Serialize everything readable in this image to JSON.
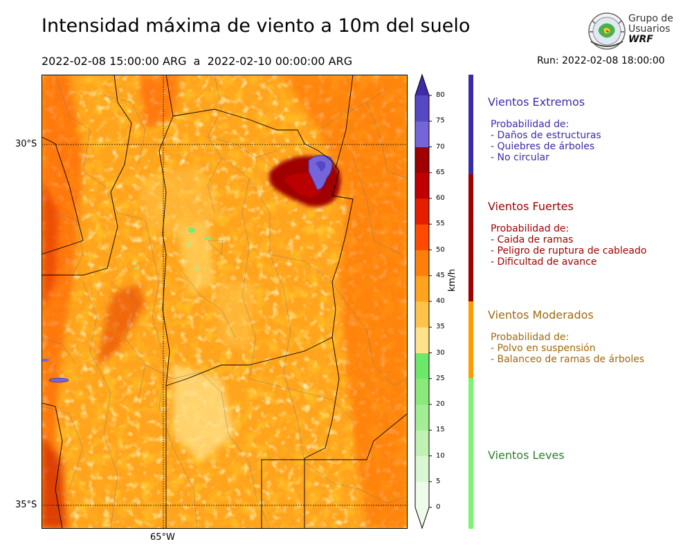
{
  "title": "Intensidad máxima de viento a 10m del suelo",
  "subtitle": "2022-02-08 15:00:00 ARG  a  2022-02-10 00:00:00 ARG",
  "run": "Run: 2022-02-08 18:00:00",
  "logo": {
    "line1": "Grupo de",
    "line2": "Usuarios",
    "line3": "WRF"
  },
  "map": {
    "lat_labels": [
      "30°S",
      "35°S"
    ],
    "lon_labels": [
      "65°W"
    ]
  },
  "colorbar": {
    "unit": "km/h",
    "ticks": [
      0,
      5,
      10,
      15,
      20,
      25,
      30,
      35,
      40,
      45,
      50,
      55,
      60,
      65,
      70,
      75,
      80
    ],
    "colors": {
      "0": "#eefbea",
      "5": "#d9f7d2",
      "10": "#bff2b3",
      "15": "#a3ee95",
      "20": "#8be97c",
      "25": "#6ee86a",
      "30": "#ffe28a",
      "35": "#ffc34a",
      "40": "#ffa41c",
      "45": "#ff7f0a",
      "50": "#ff4a00",
      "55": "#e61e00",
      "60": "#c00000",
      "65": "#a00000",
      "70": "#7466d9",
      "75": "#5647c4",
      "80": "#3e2ba8"
    }
  },
  "categories": [
    {
      "name": "Vientos Extremos",
      "color": "#3b2ba8",
      "bar_color": "#3b2ba8",
      "prob_title": "Probabilidad de:",
      "items": [
        "- Daños de estructuras",
        "- Quiebres de árboles",
        "- No circular"
      ]
    },
    {
      "name": "Vientos Fuertes",
      "color": "#a00000",
      "bar_color": "#a00000",
      "prob_title": "Probabilidad de:",
      "items": [
        "- Caida de ramas",
        "- Peligro de ruptura de cableado",
        "- Dificultad de avance"
      ]
    },
    {
      "name": "Vientos Moderados",
      "color": "#a0680a",
      "bar_color": "#ff9c00",
      "prob_title": "Probabilidad de:",
      "items": [
        "- Polvo en suspensión",
        "- Balanceo de ramas de árboles"
      ]
    },
    {
      "name": "Vientos Leves",
      "color": "#2e7d32",
      "bar_color": "#7bf56f",
      "prob_title": "",
      "items": []
    }
  ]
}
